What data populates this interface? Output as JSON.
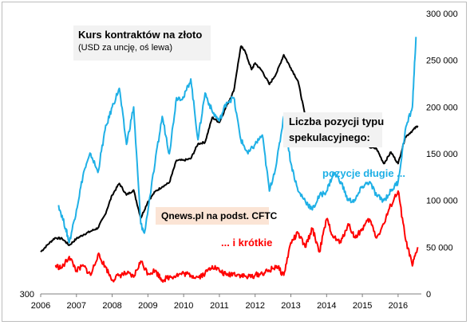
{
  "chart_data": {
    "type": "line",
    "title": "Kurs kontraktów na złoto",
    "subtitle": "(USD za uncję, oś lewa)",
    "source": "Qnews.pl na podst. CFTC",
    "annotations": {
      "positions_title_line1": "Liczba pozycji typu",
      "positions_title_line2": "spekulacyjnego:",
      "long_label": "pozycje długie ...",
      "short_label": "... i krótkie"
    },
    "x_axis": {
      "range": [
        2006,
        2016.65
      ],
      "ticks": [
        "2006",
        "2007",
        "2008",
        "2009",
        "2010",
        "2011",
        "2012",
        "2013",
        "2014",
        "2015",
        "2016"
      ]
    },
    "y_left": {
      "range": [
        300,
        2000
      ],
      "ticks": [
        "300"
      ]
    },
    "y_right": {
      "range": [
        0,
        300000
      ],
      "ticks": [
        "0",
        "50 000",
        "100 000",
        "150 000",
        "200 000",
        "250 000",
        "300 000"
      ]
    },
    "legend": "none",
    "grid": false,
    "series": [
      {
        "axis": "left",
        "color": "#000000",
        "x": [
          2006.0,
          2006.2,
          2006.4,
          2006.6,
          2006.8,
          2007.0,
          2007.2,
          2007.4,
          2007.6,
          2007.8,
          2008.0,
          2008.2,
          2008.4,
          2008.6,
          2008.8,
          2009.0,
          2009.2,
          2009.4,
          2009.6,
          2009.8,
          2010.0,
          2010.2,
          2010.4,
          2010.6,
          2010.8,
          2011.0,
          2011.2,
          2011.4,
          2011.6,
          2011.7,
          2011.9,
          2012.0,
          2012.2,
          2012.4,
          2012.6,
          2012.8,
          2013.0,
          2013.2,
          2013.4,
          2013.6,
          2013.8,
          2014.0,
          2014.2,
          2014.4,
          2014.6,
          2014.8,
          2015.0,
          2015.2,
          2015.4,
          2015.6,
          2015.8,
          2016.0,
          2016.2,
          2016.4,
          2016.55
        ],
        "y": [
          555,
          600,
          640,
          635,
          595,
          635,
          660,
          680,
          700,
          780,
          900,
          970,
          900,
          930,
          760,
          860,
          920,
          950,
          975,
          1110,
          1110,
          1120,
          1210,
          1220,
          1370,
          1340,
          1440,
          1530,
          1800,
          1780,
          1660,
          1700,
          1650,
          1570,
          1640,
          1750,
          1670,
          1590,
          1380,
          1320,
          1320,
          1230,
          1320,
          1280,
          1300,
          1200,
          1250,
          1190,
          1180,
          1090,
          1160,
          1090,
          1250,
          1290,
          1320
        ]
      },
      {
        "axis": "right",
        "color": "#1fb0e6",
        "x": [
          2006.5,
          2006.7,
          2006.8,
          2007.0,
          2007.2,
          2007.4,
          2007.6,
          2007.8,
          2008.0,
          2008.2,
          2008.4,
          2008.6,
          2008.8,
          2008.9,
          2009.2,
          2009.4,
          2009.6,
          2009.8,
          2010.0,
          2010.2,
          2010.4,
          2010.6,
          2010.8,
          2011.0,
          2011.2,
          2011.4,
          2011.6,
          2011.8,
          2012.0,
          2012.2,
          2012.4,
          2012.6,
          2012.8,
          2013.0,
          2013.2,
          2013.4,
          2013.6,
          2013.8,
          2014.0,
          2014.2,
          2014.4,
          2014.6,
          2014.8,
          2015.0,
          2015.2,
          2015.4,
          2015.6,
          2015.8,
          2016.0,
          2016.2,
          2016.4,
          2016.5
        ],
        "y": [
          95000,
          70000,
          55000,
          90000,
          130000,
          150000,
          130000,
          175000,
          200000,
          220000,
          160000,
          200000,
          75000,
          65000,
          140000,
          190000,
          150000,
          210000,
          210000,
          230000,
          165000,
          215000,
          195000,
          185000,
          205000,
          210000,
          165000,
          150000,
          160000,
          170000,
          110000,
          140000,
          190000,
          140000,
          110000,
          100000,
          90000,
          105000,
          110000,
          130000,
          120000,
          100000,
          100000,
          115000,
          120000,
          105000,
          100000,
          110000,
          120000,
          175000,
          200000,
          275000
        ]
      },
      {
        "axis": "right",
        "color": "#ff0000",
        "x": [
          2006.4,
          2006.6,
          2006.8,
          2007.0,
          2007.2,
          2007.4,
          2007.6,
          2007.8,
          2008.0,
          2008.2,
          2008.4,
          2008.6,
          2008.8,
          2009.0,
          2009.2,
          2009.4,
          2009.6,
          2009.8,
          2010.0,
          2010.2,
          2010.4,
          2010.6,
          2010.8,
          2011.0,
          2011.2,
          2011.4,
          2011.6,
          2011.8,
          2012.0,
          2012.2,
          2012.4,
          2012.6,
          2012.8,
          2013.0,
          2013.2,
          2013.4,
          2013.6,
          2013.8,
          2014.0,
          2014.2,
          2014.4,
          2014.6,
          2014.8,
          2015.0,
          2015.2,
          2015.4,
          2015.6,
          2015.8,
          2016.0,
          2016.2,
          2016.4,
          2016.55
        ],
        "y": [
          30000,
          28000,
          40000,
          25000,
          30000,
          20000,
          42000,
          30000,
          15000,
          20000,
          22000,
          18000,
          35000,
          22000,
          25000,
          15000,
          18000,
          20000,
          22000,
          20000,
          18000,
          22000,
          30000,
          25000,
          20000,
          22000,
          20000,
          18000,
          20000,
          22000,
          25000,
          30000,
          20000,
          55000,
          65000,
          50000,
          70000,
          45000,
          80000,
          60000,
          55000,
          75000,
          60000,
          70000,
          80000,
          60000,
          75000,
          95000,
          110000,
          60000,
          30000,
          50000
        ]
      }
    ]
  }
}
